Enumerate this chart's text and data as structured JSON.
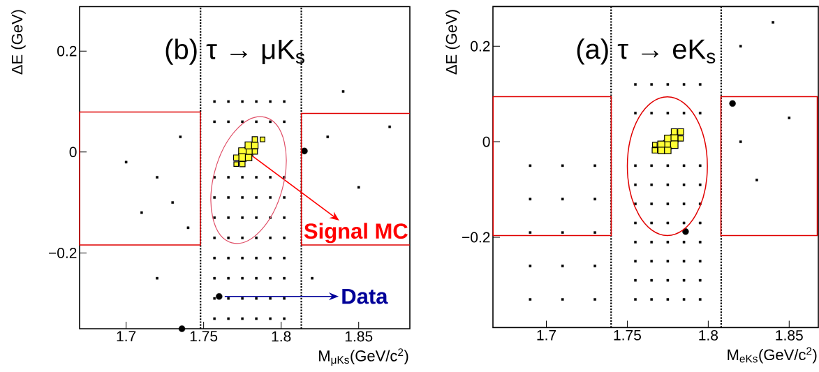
{
  "chart_data": [
    {
      "type": "scatter",
      "xlabel": "M$_{μKs}$(GeV/c$^{2}$)",
      "ylabel": "ΔE (GeV)",
      "xlim": [
        1.67,
        1.883
      ],
      "ylim": [
        -0.35,
        0.288
      ],
      "xticks": [
        1.7,
        1.75,
        1.8,
        1.85
      ],
      "yticks": [
        {
          "value": -0.2,
          "label": "−0.2"
        },
        0,
        0.2
      ],
      "ref_lines": [
        {
          "axis": "x",
          "value": 1.748,
          "color": "#000000",
          "line_style": "dotted"
        },
        {
          "axis": "x",
          "value": 1.813,
          "color": "#000000",
          "line_style": "dotted"
        }
      ],
      "annotations": [
        "(b) τ → μK$_{s}$",
        {
          "text": "Signal MC",
          "x": 1.778,
          "y": 0.0
        },
        {
          "text": "Data",
          "x": 1.76,
          "y": -0.286
        }
      ],
      "series": [
        {
          "marker": "square",
          "color": "#000000",
          "x": [
            1.757,
            1.757,
            1.757,
            1.757,
            1.757,
            1.757,
            1.757,
            1.757,
            1.757,
            1.757,
            1.766,
            1.766,
            1.766,
            1.766,
            1.766,
            1.766,
            1.766,
            1.766,
            1.766,
            1.766,
            1.775,
            1.775,
            1.775,
            1.775,
            1.775,
            1.775,
            1.775,
            1.775,
            1.775,
            1.775,
            1.784,
            1.784,
            1.784,
            1.784,
            1.784,
            1.784,
            1.784,
            1.784,
            1.784,
            1.784,
            1.793,
            1.793,
            1.793,
            1.793,
            1.793,
            1.793,
            1.793,
            1.793,
            1.793,
            1.793,
            1.802,
            1.802,
            1.802,
            1.802,
            1.802,
            1.802,
            1.802,
            1.802,
            1.802,
            1.802,
            1.7,
            1.72,
            1.73,
            1.74,
            1.735,
            1.71,
            1.83,
            1.85,
            1.87,
            1.84,
            1.82,
            1.72
          ],
          "values": [
            0.1,
            0.06,
            -0.05,
            -0.09,
            -0.13,
            -0.17,
            -0.21,
            -0.25,
            -0.29,
            -0.33,
            0.1,
            0.06,
            -0.05,
            -0.09,
            -0.13,
            -0.17,
            -0.21,
            -0.25,
            -0.29,
            -0.33,
            0.1,
            0.06,
            -0.05,
            -0.09,
            -0.13,
            -0.17,
            -0.21,
            -0.25,
            -0.29,
            -0.33,
            0.1,
            0.06,
            -0.05,
            -0.09,
            -0.13,
            -0.17,
            -0.21,
            -0.25,
            -0.29,
            -0.33,
            0.1,
            0.06,
            -0.05,
            -0.09,
            -0.13,
            -0.17,
            -0.21,
            -0.25,
            -0.29,
            -0.33,
            0.1,
            0.06,
            -0.05,
            -0.09,
            -0.13,
            -0.17,
            -0.21,
            -0.25,
            -0.29,
            -0.33,
            -0.02,
            -0.05,
            -0.1,
            -0.15,
            0.03,
            -0.12,
            0.03,
            -0.07,
            0.05,
            0.12,
            -0.25,
            -0.25
          ]
        },
        {
          "type": "bubble",
          "marker": "square",
          "color": "#ffff33",
          "x": [
            1.779,
            1.775,
            1.779,
            1.775,
            1.779,
            1.783,
            1.783,
            1.771,
            1.775,
            1.783,
            1.788,
            1.771
          ],
          "values": [
            0.001,
            0.001,
            0.013,
            -0.011,
            -0.011,
            0.013,
            0.025,
            -0.011,
            -0.024,
            0.001,
            0.025,
            -0.024
          ],
          "sizes": [
            1,
            0.8,
            0.7,
            0.8,
            0.6,
            0.6,
            0.4,
            0.4,
            0.4,
            0.4,
            0.3,
            0.3
          ]
        },
        {
          "marker": "circle",
          "color": "#000000",
          "x": [
            1.815,
            1.76,
            1.736
          ],
          "values": [
            0.002,
            -0.286,
            -0.35
          ]
        }
      ]
    },
    {
      "type": "scatter",
      "xlabel": "M$_{eKs}$(GeV/c$^{2}$)",
      "ylabel": "ΔE (GeV)",
      "xlim": [
        1.667,
        1.868
      ],
      "ylim": [
        -0.389,
        0.283
      ],
      "xticks": [
        1.7,
        1.75,
        1.8,
        1.85
      ],
      "yticks": [
        {
          "value": -0.2,
          "label": "−0.2"
        },
        0,
        0.2
      ],
      "ref_lines": [
        {
          "axis": "x",
          "value": 1.74,
          "color": "#000000",
          "line_style": "dotted"
        },
        {
          "axis": "x",
          "value": 1.808,
          "color": "#000000",
          "line_style": "dotted"
        }
      ],
      "annotations": [
        "(a) τ → eK$_{s}$"
      ],
      "series": [
        {
          "marker": "square",
          "color": "#000000",
          "x": [
            1.755,
            1.755,
            1.755,
            1.755,
            1.755,
            1.755,
            1.755,
            1.755,
            1.755,
            1.755,
            1.765,
            1.765,
            1.765,
            1.765,
            1.765,
            1.765,
            1.765,
            1.765,
            1.765,
            1.765,
            1.775,
            1.775,
            1.775,
            1.775,
            1.775,
            1.775,
            1.775,
            1.775,
            1.775,
            1.775,
            1.785,
            1.785,
            1.785,
            1.785,
            1.785,
            1.785,
            1.785,
            1.785,
            1.785,
            1.785,
            1.795,
            1.795,
            1.795,
            1.795,
            1.795,
            1.795,
            1.795,
            1.795,
            1.795,
            1.795,
            1.69,
            1.69,
            1.69,
            1.69,
            1.69,
            1.71,
            1.71,
            1.71,
            1.71,
            1.71,
            1.73,
            1.73,
            1.73,
            1.73,
            1.73,
            1.82,
            1.83,
            1.85,
            1.82,
            1.84
          ],
          "values": [
            0.12,
            0.06,
            -0.05,
            -0.09,
            -0.13,
            -0.17,
            -0.21,
            -0.25,
            -0.29,
            -0.33,
            0.12,
            0.06,
            -0.05,
            -0.09,
            -0.13,
            -0.17,
            -0.21,
            -0.25,
            -0.29,
            -0.33,
            0.12,
            0.06,
            -0.05,
            -0.09,
            -0.13,
            -0.17,
            -0.21,
            -0.25,
            -0.29,
            -0.33,
            0.12,
            0.06,
            -0.05,
            -0.09,
            -0.13,
            -0.17,
            -0.21,
            -0.25,
            -0.29,
            -0.33,
            0.12,
            0.06,
            -0.05,
            -0.09,
            -0.13,
            -0.17,
            -0.21,
            -0.25,
            -0.29,
            -0.33,
            -0.05,
            -0.12,
            -0.19,
            -0.26,
            -0.33,
            -0.05,
            -0.12,
            -0.19,
            -0.26,
            -0.33,
            -0.05,
            -0.12,
            -0.19,
            -0.26,
            -0.33,
            0.0,
            -0.08,
            0.05,
            0.2,
            0.25
          ]
        },
        {
          "type": "bubble",
          "marker": "square",
          "color": "#ffff33",
          "x": [
            1.775,
            1.779,
            1.779,
            1.771,
            1.771,
            1.775,
            1.775,
            1.783,
            1.779,
            1.783,
            1.767,
            1.767
          ],
          "values": [
            -0.006,
            0.007,
            -0.006,
            -0.006,
            -0.018,
            -0.018,
            0.007,
            0.021,
            0.021,
            0.007,
            -0.018,
            -0.006
          ],
          "sizes": [
            1,
            0.8,
            0.8,
            0.7,
            0.6,
            0.6,
            0.6,
            0.5,
            0.5,
            0.4,
            0.4,
            0.3
          ]
        },
        {
          "marker": "circle",
          "color": "#000000",
          "x": [
            1.815,
            1.786
          ],
          "values": [
            0.08,
            -0.188
          ]
        }
      ]
    }
  ]
}
